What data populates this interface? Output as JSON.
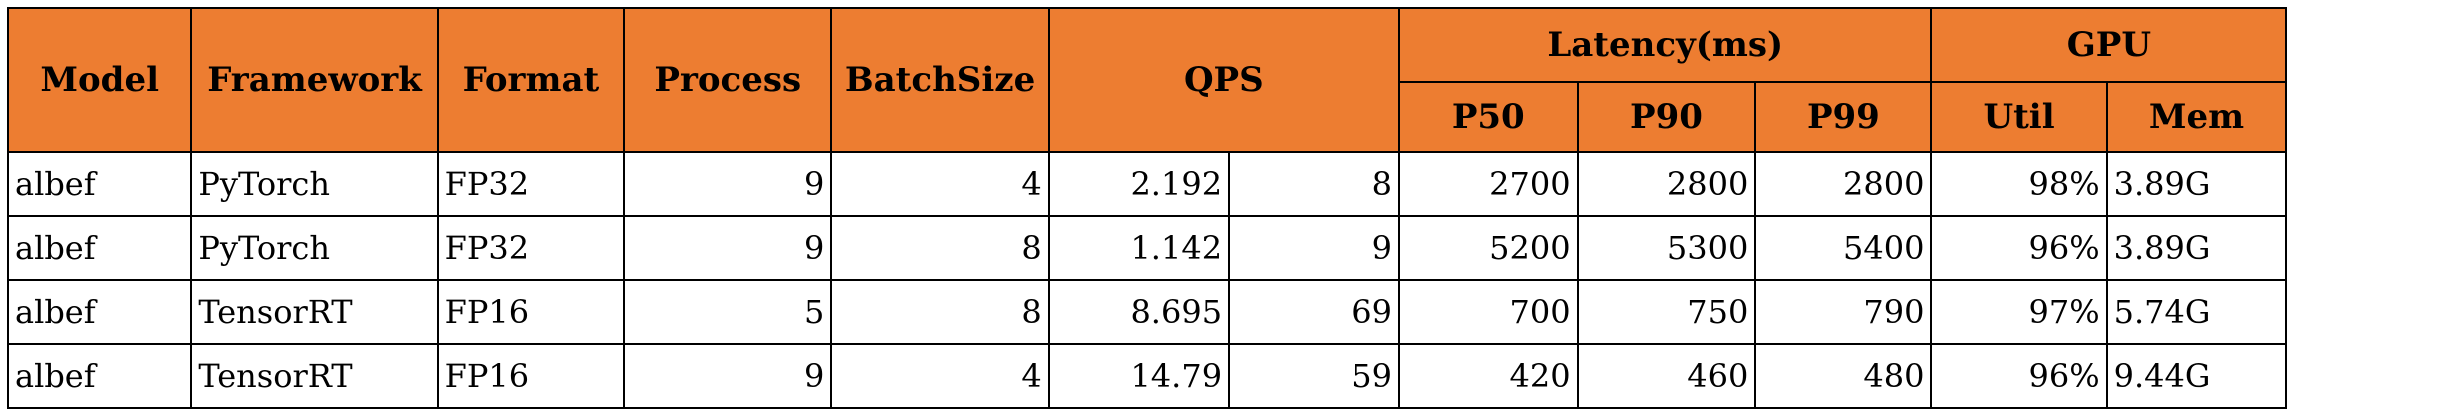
{
  "headers": {
    "model": "Model",
    "framework": "Framework",
    "format": "Format",
    "process": "Process",
    "batch_size": "BatchSize",
    "qps": "QPS",
    "latency": "Latency(ms)",
    "p50": "P50",
    "p90": "P90",
    "p99": "P99",
    "gpu": "GPU",
    "util": "Util",
    "mem": "Mem"
  },
  "rows": [
    {
      "model": "albef",
      "framework": "PyTorch",
      "format": "FP32",
      "process": "9",
      "batch_size": "4",
      "qps_a": "2.192",
      "qps_b": "8",
      "p50": "2700",
      "p90": "2800",
      "p99": "2800",
      "util": "98%",
      "mem": "3.89G"
    },
    {
      "model": "albef",
      "framework": "PyTorch",
      "format": "FP32",
      "process": "9",
      "batch_size": "8",
      "qps_a": "1.142",
      "qps_b": "9",
      "p50": "5200",
      "p90": "5300",
      "p99": "5400",
      "util": "96%",
      "mem": "3.89G"
    },
    {
      "model": "albef",
      "framework": "TensorRT",
      "format": "FP16",
      "process": "5",
      "batch_size": "8",
      "qps_a": "8.695",
      "qps_b": "69",
      "p50": "700",
      "p90": "750",
      "p99": "790",
      "util": "97%",
      "mem": "5.74G"
    },
    {
      "model": "albef",
      "framework": "TensorRT",
      "format": "FP16",
      "process": "9",
      "batch_size": "4",
      "qps_a": "14.79",
      "qps_b": "59",
      "p50": "420",
      "p90": "460",
      "p99": "480",
      "util": "96%",
      "mem": "9.44G"
    }
  ],
  "colors": {
    "header_fill": "#ed7d31",
    "border": "#000000",
    "cell_fill": "#ffffff"
  }
}
